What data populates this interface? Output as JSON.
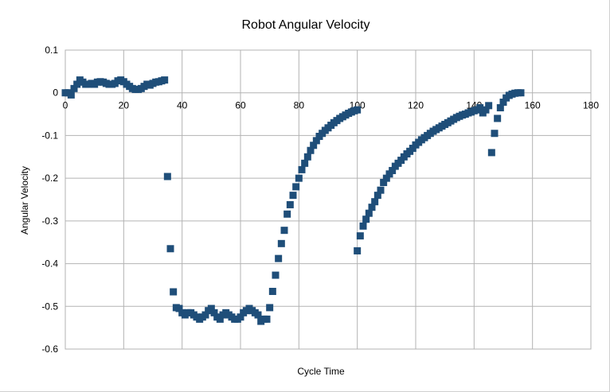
{
  "chart_data": {
    "type": "scatter",
    "title": "Robot Angular Velocity",
    "xlabel": "Cycle Time",
    "ylabel": "Angular Velocity",
    "xlim": [
      0,
      180
    ],
    "ylim": [
      -0.6,
      0.1
    ],
    "x_ticks": [
      0,
      20,
      40,
      60,
      80,
      100,
      120,
      140,
      160,
      180
    ],
    "y_ticks": [
      0.1,
      0,
      -0.1,
      -0.2,
      -0.3,
      -0.4,
      -0.5,
      -0.6
    ],
    "x_tick_labels": [
      "0",
      "20",
      "40",
      "60",
      "80",
      "100",
      "120",
      "140",
      "160",
      "180"
    ],
    "y_tick_labels": [
      "0.1",
      "0",
      "-0.1",
      "-0.2",
      "-0.3",
      "-0.4",
      "-0.5",
      "-0.6"
    ],
    "grid": true,
    "legend": "none",
    "marker": "square",
    "color": "#1f4e79",
    "series": [
      {
        "points": [
          [
            0,
            0.0
          ],
          [
            1,
            0.0
          ],
          [
            2,
            -0.005
          ],
          [
            3,
            0.01
          ],
          [
            4,
            0.02
          ],
          [
            5,
            0.03
          ],
          [
            6,
            0.025
          ],
          [
            7,
            0.02
          ],
          [
            8,
            0.02
          ],
          [
            9,
            0.022
          ],
          [
            10,
            0.02
          ],
          [
            11,
            0.025
          ],
          [
            12,
            0.026
          ],
          [
            13,
            0.025
          ],
          [
            14,
            0.022
          ],
          [
            15,
            0.02
          ],
          [
            16,
            0.02
          ],
          [
            17,
            0.022
          ],
          [
            18,
            0.028
          ],
          [
            19,
            0.03
          ],
          [
            20,
            0.026
          ],
          [
            21,
            0.02
          ],
          [
            22,
            0.015
          ],
          [
            23,
            0.01
          ],
          [
            24,
            0.008
          ],
          [
            25,
            0.008
          ],
          [
            26,
            0.01
          ],
          [
            27,
            0.015
          ],
          [
            28,
            0.02
          ],
          [
            29,
            0.018
          ],
          [
            30,
            0.022
          ],
          [
            31,
            0.025
          ],
          [
            32,
            0.026
          ],
          [
            33,
            0.028
          ],
          [
            34,
            0.03
          ],
          [
            35,
            -0.196
          ],
          [
            36,
            -0.365
          ],
          [
            37,
            -0.466
          ],
          [
            38,
            -0.503
          ],
          [
            39,
            -0.505
          ],
          [
            40,
            -0.515
          ],
          [
            41,
            -0.52
          ],
          [
            42,
            -0.515
          ],
          [
            43,
            -0.515
          ],
          [
            44,
            -0.52
          ],
          [
            45,
            -0.525
          ],
          [
            46,
            -0.53
          ],
          [
            47,
            -0.525
          ],
          [
            48,
            -0.52
          ],
          [
            49,
            -0.51
          ],
          [
            50,
            -0.505
          ],
          [
            51,
            -0.515
          ],
          [
            52,
            -0.525
          ],
          [
            53,
            -0.53
          ],
          [
            54,
            -0.52
          ],
          [
            55,
            -0.515
          ],
          [
            56,
            -0.52
          ],
          [
            57,
            -0.525
          ],
          [
            58,
            -0.53
          ],
          [
            59,
            -0.53
          ],
          [
            60,
            -0.525
          ],
          [
            61,
            -0.515
          ],
          [
            62,
            -0.51
          ],
          [
            63,
            -0.505
          ],
          [
            64,
            -0.51
          ],
          [
            65,
            -0.515
          ],
          [
            66,
            -0.52
          ],
          [
            67,
            -0.535
          ],
          [
            68,
            -0.53
          ],
          [
            69,
            -0.53
          ],
          [
            70,
            -0.503
          ],
          [
            71,
            -0.465
          ],
          [
            72,
            -0.427
          ],
          [
            73,
            -0.388
          ],
          [
            74,
            -0.353
          ],
          [
            75,
            -0.322
          ],
          [
            76,
            -0.284
          ],
          [
            77,
            -0.262
          ],
          [
            78,
            -0.24
          ],
          [
            79,
            -0.22
          ],
          [
            80,
            -0.2
          ],
          [
            81,
            -0.18
          ],
          [
            82,
            -0.165
          ],
          [
            83,
            -0.15
          ],
          [
            84,
            -0.135
          ],
          [
            85,
            -0.123
          ],
          [
            86,
            -0.112
          ],
          [
            87,
            -0.102
          ],
          [
            88,
            -0.095
          ],
          [
            89,
            -0.088
          ],
          [
            90,
            -0.082
          ],
          [
            91,
            -0.076
          ],
          [
            92,
            -0.07
          ],
          [
            93,
            -0.065
          ],
          [
            94,
            -0.06
          ],
          [
            95,
            -0.056
          ],
          [
            96,
            -0.052
          ],
          [
            97,
            -0.048
          ],
          [
            98,
            -0.045
          ],
          [
            99,
            -0.042
          ],
          [
            100,
            -0.04
          ],
          [
            100,
            -0.37
          ],
          [
            101,
            -0.335
          ],
          [
            102,
            -0.312
          ],
          [
            103,
            -0.296
          ],
          [
            104,
            -0.282
          ],
          [
            105,
            -0.268
          ],
          [
            106,
            -0.255
          ],
          [
            107,
            -0.24
          ],
          [
            108,
            -0.228
          ],
          [
            109,
            -0.21
          ],
          [
            110,
            -0.2
          ],
          [
            111,
            -0.19
          ],
          [
            112,
            -0.182
          ],
          [
            113,
            -0.172
          ],
          [
            114,
            -0.165
          ],
          [
            115,
            -0.158
          ],
          [
            116,
            -0.15
          ],
          [
            117,
            -0.143
          ],
          [
            118,
            -0.137
          ],
          [
            119,
            -0.13
          ],
          [
            120,
            -0.122
          ],
          [
            121,
            -0.116
          ],
          [
            122,
            -0.11
          ],
          [
            123,
            -0.105
          ],
          [
            124,
            -0.1
          ],
          [
            125,
            -0.095
          ],
          [
            126,
            -0.09
          ],
          [
            127,
            -0.086
          ],
          [
            128,
            -0.082
          ],
          [
            129,
            -0.078
          ],
          [
            130,
            -0.074
          ],
          [
            131,
            -0.07
          ],
          [
            132,
            -0.066
          ],
          [
            133,
            -0.062
          ],
          [
            134,
            -0.058
          ],
          [
            135,
            -0.055
          ],
          [
            136,
            -0.052
          ],
          [
            137,
            -0.05
          ],
          [
            138,
            -0.047
          ],
          [
            139,
            -0.045
          ],
          [
            140,
            -0.042
          ],
          [
            141,
            -0.04
          ],
          [
            142,
            -0.035
          ],
          [
            143,
            -0.047
          ],
          [
            144,
            -0.04
          ],
          [
            145,
            -0.03
          ],
          [
            146,
            -0.14
          ],
          [
            147,
            -0.095
          ],
          [
            148,
            -0.06
          ],
          [
            149,
            -0.035
          ],
          [
            150,
            -0.022
          ],
          [
            151,
            -0.012
          ],
          [
            152,
            -0.006
          ],
          [
            153,
            -0.003
          ],
          [
            154,
            -0.001
          ],
          [
            155,
            0.0
          ],
          [
            156,
            0.0
          ]
        ]
      }
    ]
  }
}
